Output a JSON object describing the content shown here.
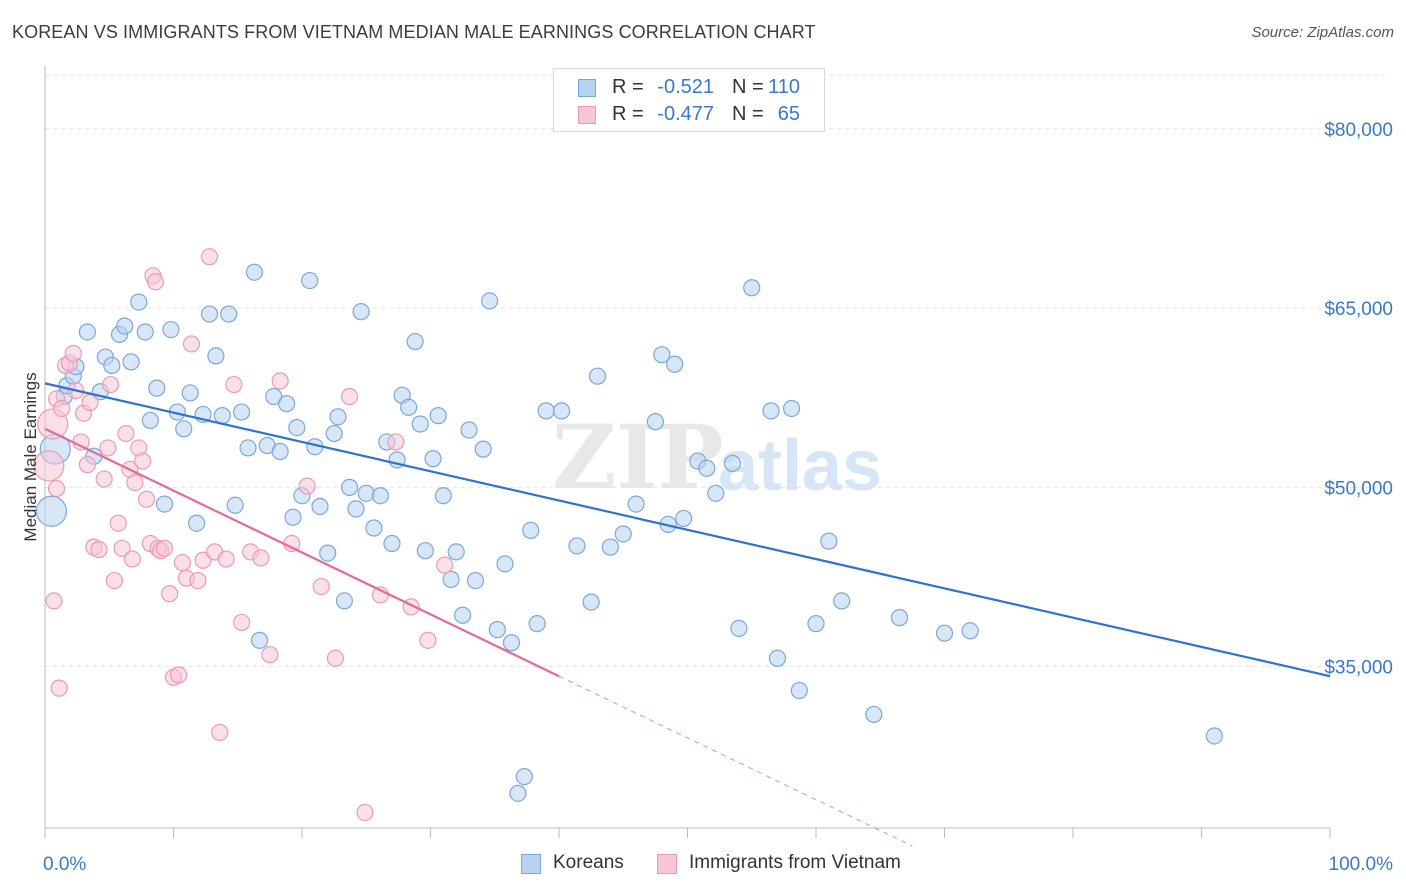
{
  "title": "KOREAN VS IMMIGRANTS FROM VIETNAM MEDIAN MALE EARNINGS CORRELATION CHART",
  "source": "Source: ZipAtlas.com",
  "watermark": {
    "zip": "ZIP",
    "atlas": "atlas"
  },
  "legend": {
    "koreans": {
      "r_label": "R =",
      "r_value": "-0.521",
      "n_label": "N =",
      "n_value": "110"
    },
    "vietnam": {
      "r_label": "R =",
      "r_value": "-0.477",
      "n_label": "N =",
      "n_value": "65"
    }
  },
  "colors": {
    "koreans_fill": "#b8d3f2",
    "koreans_stroke": "#7aa7dc",
    "koreans_line": "#2f72cf",
    "vietnam_fill": "#f7c6d6",
    "vietnam_stroke": "#eb9ab6",
    "vietnam_line": "#e56b97",
    "axis_label": "#3a78c9",
    "grid": "#e3e3e3"
  },
  "chart_data": {
    "type": "scatter",
    "title": "KOREAN VS IMMIGRANTS FROM VIETNAM MEDIAN MALE EARNINGS CORRELATION CHART",
    "xlabel": "",
    "ylabel": "Median Male Earnings",
    "xlim": [
      0,
      100
    ],
    "ylim": [
      21500,
      84500
    ],
    "x_tick_labels": [
      "0.0%",
      "100.0%"
    ],
    "y_ticks": [
      35000,
      50000,
      65000,
      80000
    ],
    "y_tick_labels": [
      "$35,000",
      "$50,000",
      "$65,000",
      "$80,000"
    ],
    "grid": true,
    "legend_position": "top-center",
    "series": [
      {
        "name": "Koreans",
        "trend": {
          "x": [
            0,
            100
          ],
          "y": [
            58700,
            34200
          ]
        },
        "points": [
          [
            0.5,
            48000
          ],
          [
            0.8,
            53200
          ],
          [
            1.5,
            57600
          ],
          [
            1.7,
            58500
          ],
          [
            2.2,
            59300
          ],
          [
            2.4,
            60100
          ],
          [
            3.3,
            63000
          ],
          [
            3.8,
            52600
          ],
          [
            4.3,
            58000
          ],
          [
            4.7,
            60900
          ],
          [
            5.2,
            60200
          ],
          [
            5.8,
            62800
          ],
          [
            6.2,
            63500
          ],
          [
            6.7,
            60500
          ],
          [
            7.3,
            65500
          ],
          [
            7.8,
            63000
          ],
          [
            8.2,
            55600
          ],
          [
            8.7,
            58300
          ],
          [
            9.3,
            48600
          ],
          [
            9.8,
            63200
          ],
          [
            10.3,
            56300
          ],
          [
            10.8,
            54900
          ],
          [
            11.3,
            57900
          ],
          [
            11.8,
            47000
          ],
          [
            12.3,
            56100
          ],
          [
            12.8,
            64500
          ],
          [
            13.3,
            61000
          ],
          [
            13.8,
            56000
          ],
          [
            14.3,
            64500
          ],
          [
            14.8,
            48500
          ],
          [
            15.3,
            56300
          ],
          [
            15.8,
            53300
          ],
          [
            16.3,
            68000
          ],
          [
            16.7,
            37200
          ],
          [
            17.3,
            53500
          ],
          [
            17.8,
            57600
          ],
          [
            18.3,
            53000
          ],
          [
            18.8,
            57000
          ],
          [
            19.3,
            47500
          ],
          [
            19.6,
            55000
          ],
          [
            20.0,
            49300
          ],
          [
            20.6,
            67300
          ],
          [
            21.0,
            53400
          ],
          [
            21.4,
            48400
          ],
          [
            22.0,
            44500
          ],
          [
            22.5,
            54500
          ],
          [
            22.8,
            55900
          ],
          [
            23.3,
            40500
          ],
          [
            23.7,
            50000
          ],
          [
            24.2,
            48200
          ],
          [
            24.6,
            64700
          ],
          [
            25.0,
            49500
          ],
          [
            25.6,
            46600
          ],
          [
            26.1,
            49300
          ],
          [
            26.6,
            53800
          ],
          [
            27.0,
            45300
          ],
          [
            27.4,
            52300
          ],
          [
            27.8,
            57700
          ],
          [
            28.3,
            56700
          ],
          [
            28.8,
            62200
          ],
          [
            29.2,
            55300
          ],
          [
            29.6,
            44700
          ],
          [
            30.2,
            52400
          ],
          [
            30.6,
            56000
          ],
          [
            31.0,
            49300
          ],
          [
            31.6,
            42300
          ],
          [
            32.0,
            44600
          ],
          [
            32.5,
            39300
          ],
          [
            33.0,
            54800
          ],
          [
            33.5,
            42200
          ],
          [
            34.1,
            53200
          ],
          [
            34.6,
            65600
          ],
          [
            35.2,
            38100
          ],
          [
            35.8,
            43600
          ],
          [
            36.3,
            37000
          ],
          [
            36.8,
            24400
          ],
          [
            37.3,
            25800
          ],
          [
            37.8,
            46400
          ],
          [
            38.3,
            38600
          ],
          [
            39.0,
            56400
          ],
          [
            40.2,
            56400
          ],
          [
            41.4,
            45100
          ],
          [
            42.5,
            40400
          ],
          [
            43.0,
            59300
          ],
          [
            44.0,
            45000
          ],
          [
            45.0,
            46100
          ],
          [
            46.0,
            48600
          ],
          [
            47.5,
            55500
          ],
          [
            48.0,
            61100
          ],
          [
            48.5,
            46900
          ],
          [
            49.0,
            60300
          ],
          [
            49.7,
            47400
          ],
          [
            50.8,
            52200
          ],
          [
            51.5,
            51600
          ],
          [
            52.2,
            49500
          ],
          [
            53.5,
            52000
          ],
          [
            54.0,
            38200
          ],
          [
            55.0,
            66700
          ],
          [
            56.5,
            56400
          ],
          [
            57.0,
            35700
          ],
          [
            58.1,
            56600
          ],
          [
            58.7,
            33000
          ],
          [
            60.0,
            38600
          ],
          [
            61.0,
            45500
          ],
          [
            62.0,
            40500
          ],
          [
            64.5,
            31000
          ],
          [
            66.5,
            39100
          ],
          [
            70.0,
            37800
          ],
          [
            72.0,
            38000
          ],
          [
            91.0,
            29200
          ]
        ]
      },
      {
        "name": "Immigrants from Vietnam",
        "trend": {
          "x": [
            0,
            40
          ],
          "y": [
            54900,
            34200
          ]
        },
        "trend_dashed": {
          "x": [
            40,
            67.5
          ],
          "y": [
            34200,
            20000
          ]
        },
        "points": [
          [
            0.3,
            51800
          ],
          [
            0.6,
            55300
          ],
          [
            0.9,
            57400
          ],
          [
            1.3,
            56600
          ],
          [
            1.6,
            60200
          ],
          [
            1.9,
            60400
          ],
          [
            2.2,
            61200
          ],
          [
            2.4,
            58100
          ],
          [
            2.8,
            53800
          ],
          [
            3.0,
            56200
          ],
          [
            3.3,
            51900
          ],
          [
            3.5,
            57100
          ],
          [
            3.8,
            45000
          ],
          [
            4.2,
            44800
          ],
          [
            4.6,
            50700
          ],
          [
            4.9,
            53300
          ],
          [
            5.1,
            58600
          ],
          [
            5.4,
            42200
          ],
          [
            5.7,
            47000
          ],
          [
            6.0,
            44900
          ],
          [
            6.3,
            54500
          ],
          [
            6.6,
            51500
          ],
          [
            6.8,
            44000
          ],
          [
            7.0,
            50400
          ],
          [
            7.3,
            53300
          ],
          [
            7.6,
            52200
          ],
          [
            7.9,
            49000
          ],
          [
            8.2,
            45300
          ],
          [
            8.4,
            67700
          ],
          [
            8.6,
            67200
          ],
          [
            8.8,
            44900
          ],
          [
            9.0,
            44700
          ],
          [
            9.3,
            44900
          ],
          [
            9.7,
            41100
          ],
          [
            10.0,
            34100
          ],
          [
            10.4,
            34300
          ],
          [
            10.7,
            43700
          ],
          [
            11.0,
            42400
          ],
          [
            11.4,
            62000
          ],
          [
            11.9,
            42200
          ],
          [
            12.3,
            43900
          ],
          [
            12.8,
            69300
          ],
          [
            13.2,
            44600
          ],
          [
            13.6,
            29500
          ],
          [
            14.1,
            44000
          ],
          [
            14.7,
            58600
          ],
          [
            15.3,
            38700
          ],
          [
            16.0,
            44600
          ],
          [
            16.8,
            44100
          ],
          [
            17.5,
            36000
          ],
          [
            18.3,
            58900
          ],
          [
            19.2,
            45300
          ],
          [
            20.4,
            50100
          ],
          [
            21.5,
            41700
          ],
          [
            22.6,
            35700
          ],
          [
            23.7,
            57600
          ],
          [
            24.9,
            22800
          ],
          [
            26.1,
            41000
          ],
          [
            27.3,
            53800
          ],
          [
            28.5,
            40000
          ],
          [
            29.8,
            37200
          ],
          [
            31.1,
            43500
          ],
          [
            0.7,
            40500
          ],
          [
            1.1,
            33200
          ],
          [
            0.9,
            49900
          ]
        ]
      }
    ]
  }
}
